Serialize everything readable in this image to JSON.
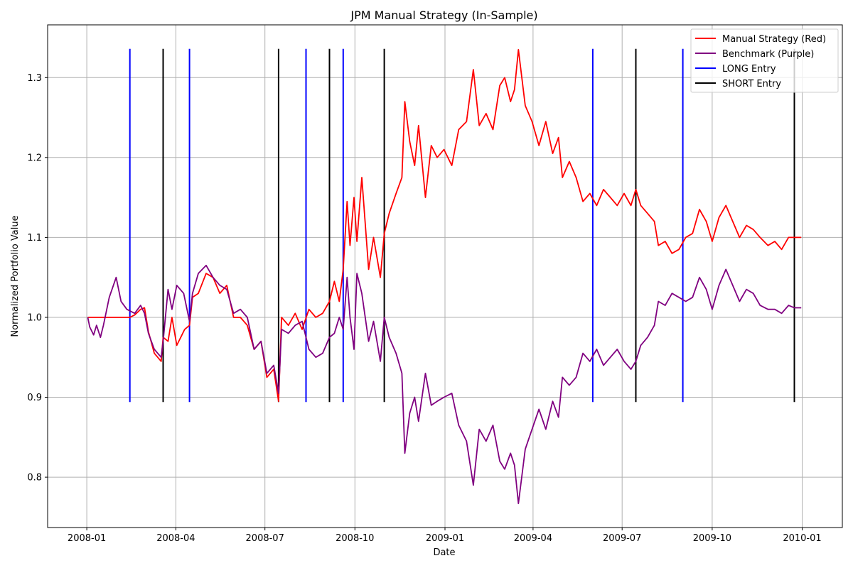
{
  "chart_data": {
    "type": "line",
    "title": "JPM Manual Strategy (In-Sample)",
    "xlabel": "Date",
    "ylabel": "Normalized Portfolio Value",
    "xlim": [
      "2007-11-22",
      "2010-02-11"
    ],
    "ylim": [
      0.737,
      1.366
    ],
    "grid": true,
    "legend_position": "top-right",
    "x_ticks": [
      "2008-01",
      "2008-04",
      "2008-07",
      "2008-10",
      "2009-01",
      "2009-04",
      "2009-07",
      "2009-10",
      "2010-01"
    ],
    "y_ticks": [
      0.8,
      0.9,
      1.0,
      1.1,
      1.2,
      1.3
    ],
    "y_tick_labels": [
      "0.8",
      "0.9",
      "1.0",
      "1.1",
      "1.2",
      "1.3"
    ],
    "series": [
      {
        "name": "Manual Strategy (Red)",
        "color": "#ff0000",
        "points": [
          [
            "2008-01-02",
            1.0
          ],
          [
            "2008-02-14",
            1.0
          ],
          [
            "2008-02-19",
            1.003
          ],
          [
            "2008-02-25",
            1.01
          ],
          [
            "2008-02-29",
            1.012
          ],
          [
            "2008-03-04",
            0.982
          ],
          [
            "2008-03-10",
            0.955
          ],
          [
            "2008-03-17",
            0.945
          ],
          [
            "2008-03-19",
            0.975
          ],
          [
            "2008-03-24",
            0.97
          ],
          [
            "2008-03-28",
            1.0
          ],
          [
            "2008-04-02",
            0.965
          ],
          [
            "2008-04-10",
            0.985
          ],
          [
            "2008-04-15",
            0.99
          ],
          [
            "2008-04-18",
            1.025
          ],
          [
            "2008-04-24",
            1.03
          ],
          [
            "2008-05-02",
            1.055
          ],
          [
            "2008-05-09",
            1.05
          ],
          [
            "2008-05-16",
            1.03
          ],
          [
            "2008-05-23",
            1.04
          ],
          [
            "2008-05-30",
            1.0
          ],
          [
            "2008-06-06",
            1.0
          ],
          [
            "2008-06-13",
            0.99
          ],
          [
            "2008-06-20",
            0.96
          ],
          [
            "2008-06-27",
            0.97
          ],
          [
            "2008-07-03",
            0.925
          ],
          [
            "2008-07-10",
            0.935
          ],
          [
            "2008-07-15",
            0.895
          ],
          [
            "2008-07-18",
            1.0
          ],
          [
            "2008-07-25",
            0.99
          ],
          [
            "2008-08-01",
            1.005
          ],
          [
            "2008-08-08",
            0.985
          ],
          [
            "2008-08-15",
            1.01
          ],
          [
            "2008-08-22",
            1.0
          ],
          [
            "2008-08-29",
            1.005
          ],
          [
            "2008-09-05",
            1.02
          ],
          [
            "2008-09-10",
            1.045
          ],
          [
            "2008-09-15",
            1.02
          ],
          [
            "2008-09-19",
            1.06
          ],
          [
            "2008-09-23",
            1.145
          ],
          [
            "2008-09-26",
            1.09
          ],
          [
            "2008-09-30",
            1.15
          ],
          [
            "2008-10-03",
            1.095
          ],
          [
            "2008-10-08",
            1.175
          ],
          [
            "2008-10-15",
            1.06
          ],
          [
            "2008-10-20",
            1.1
          ],
          [
            "2008-10-27",
            1.05
          ],
          [
            "2008-10-31",
            1.105
          ],
          [
            "2008-11-05",
            1.13
          ],
          [
            "2008-11-12",
            1.155
          ],
          [
            "2008-11-18",
            1.175
          ],
          [
            "2008-11-21",
            1.27
          ],
          [
            "2008-11-26",
            1.22
          ],
          [
            "2008-12-01",
            1.19
          ],
          [
            "2008-12-05",
            1.24
          ],
          [
            "2008-12-12",
            1.15
          ],
          [
            "2008-12-18",
            1.215
          ],
          [
            "2008-12-24",
            1.2
          ],
          [
            "2008-12-31",
            1.21
          ],
          [
            "2009-01-08",
            1.19
          ],
          [
            "2009-01-15",
            1.235
          ],
          [
            "2009-01-23",
            1.245
          ],
          [
            "2009-01-30",
            1.31
          ],
          [
            "2009-02-05",
            1.24
          ],
          [
            "2009-02-12",
            1.255
          ],
          [
            "2009-02-19",
            1.235
          ],
          [
            "2009-02-26",
            1.29
          ],
          [
            "2009-03-03",
            1.3
          ],
          [
            "2009-03-09",
            1.27
          ],
          [
            "2009-03-13",
            1.285
          ],
          [
            "2009-03-17",
            1.335
          ],
          [
            "2009-03-24",
            1.265
          ],
          [
            "2009-03-31",
            1.245
          ],
          [
            "2009-04-07",
            1.215
          ],
          [
            "2009-04-14",
            1.245
          ],
          [
            "2009-04-21",
            1.205
          ],
          [
            "2009-04-27",
            1.225
          ],
          [
            "2009-05-01",
            1.175
          ],
          [
            "2009-05-08",
            1.195
          ],
          [
            "2009-05-15",
            1.175
          ],
          [
            "2009-05-22",
            1.145
          ],
          [
            "2009-05-29",
            1.155
          ],
          [
            "2009-06-05",
            1.14
          ],
          [
            "2009-06-12",
            1.16
          ],
          [
            "2009-06-19",
            1.15
          ],
          [
            "2009-06-26",
            1.14
          ],
          [
            "2009-07-03",
            1.155
          ],
          [
            "2009-07-10",
            1.14
          ],
          [
            "2009-07-15",
            1.16
          ],
          [
            "2009-07-20",
            1.14
          ],
          [
            "2009-07-27",
            1.13
          ],
          [
            "2009-08-03",
            1.12
          ],
          [
            "2009-08-07",
            1.09
          ],
          [
            "2009-08-14",
            1.095
          ],
          [
            "2009-08-21",
            1.08
          ],
          [
            "2009-08-28",
            1.085
          ],
          [
            "2009-09-04",
            1.1
          ],
          [
            "2009-09-11",
            1.105
          ],
          [
            "2009-09-18",
            1.135
          ],
          [
            "2009-09-25",
            1.12
          ],
          [
            "2009-10-01",
            1.095
          ],
          [
            "2009-10-08",
            1.125
          ],
          [
            "2009-10-15",
            1.14
          ],
          [
            "2009-10-22",
            1.12
          ],
          [
            "2009-10-29",
            1.1
          ],
          [
            "2009-11-05",
            1.115
          ],
          [
            "2009-11-12",
            1.11
          ],
          [
            "2009-11-19",
            1.1
          ],
          [
            "2009-11-27",
            1.09
          ],
          [
            "2009-12-04",
            1.095
          ],
          [
            "2009-12-11",
            1.085
          ],
          [
            "2009-12-18",
            1.1
          ],
          [
            "2009-12-24",
            1.1
          ],
          [
            "2009-12-31",
            1.1
          ]
        ]
      },
      {
        "name": "Benchmark (Purple)",
        "color": "#800080",
        "points": [
          [
            "2008-01-02",
            1.0
          ],
          [
            "2008-01-04",
            0.988
          ],
          [
            "2008-01-08",
            0.978
          ],
          [
            "2008-01-11",
            0.99
          ],
          [
            "2008-01-15",
            0.975
          ],
          [
            "2008-01-18",
            0.99
          ],
          [
            "2008-01-24",
            1.025
          ],
          [
            "2008-01-31",
            1.05
          ],
          [
            "2008-02-05",
            1.02
          ],
          [
            "2008-02-11",
            1.01
          ],
          [
            "2008-02-19",
            1.005
          ],
          [
            "2008-02-25",
            1.015
          ],
          [
            "2008-02-29",
            1.005
          ],
          [
            "2008-03-04",
            0.98
          ],
          [
            "2008-03-10",
            0.96
          ],
          [
            "2008-03-17",
            0.95
          ],
          [
            "2008-03-19",
            0.97
          ],
          [
            "2008-03-24",
            1.035
          ],
          [
            "2008-03-28",
            1.01
          ],
          [
            "2008-04-02",
            1.04
          ],
          [
            "2008-04-09",
            1.03
          ],
          [
            "2008-04-15",
            0.995
          ],
          [
            "2008-04-18",
            1.03
          ],
          [
            "2008-04-24",
            1.055
          ],
          [
            "2008-05-02",
            1.065
          ],
          [
            "2008-05-09",
            1.05
          ],
          [
            "2008-05-16",
            1.04
          ],
          [
            "2008-05-23",
            1.035
          ],
          [
            "2008-05-30",
            1.005
          ],
          [
            "2008-06-06",
            1.01
          ],
          [
            "2008-06-13",
            1.0
          ],
          [
            "2008-06-20",
            0.96
          ],
          [
            "2008-06-27",
            0.97
          ],
          [
            "2008-07-03",
            0.93
          ],
          [
            "2008-07-10",
            0.94
          ],
          [
            "2008-07-15",
            0.905
          ],
          [
            "2008-07-18",
            0.985
          ],
          [
            "2008-07-25",
            0.98
          ],
          [
            "2008-08-01",
            0.99
          ],
          [
            "2008-08-08",
            0.995
          ],
          [
            "2008-08-15",
            0.96
          ],
          [
            "2008-08-22",
            0.95
          ],
          [
            "2008-08-29",
            0.955
          ],
          [
            "2008-09-05",
            0.975
          ],
          [
            "2008-09-10",
            0.98
          ],
          [
            "2008-09-15",
            1.0
          ],
          [
            "2008-09-19",
            0.985
          ],
          [
            "2008-09-23",
            1.05
          ],
          [
            "2008-09-26",
            1.0
          ],
          [
            "2008-09-30",
            0.96
          ],
          [
            "2008-10-03",
            1.055
          ],
          [
            "2008-10-08",
            1.03
          ],
          [
            "2008-10-15",
            0.97
          ],
          [
            "2008-10-20",
            0.995
          ],
          [
            "2008-10-27",
            0.945
          ],
          [
            "2008-10-31",
            1.0
          ],
          [
            "2008-11-05",
            0.975
          ],
          [
            "2008-11-12",
            0.955
          ],
          [
            "2008-11-18",
            0.93
          ],
          [
            "2008-11-21",
            0.83
          ],
          [
            "2008-11-26",
            0.88
          ],
          [
            "2008-12-01",
            0.9
          ],
          [
            "2008-12-05",
            0.87
          ],
          [
            "2008-12-12",
            0.93
          ],
          [
            "2008-12-18",
            0.89
          ],
          [
            "2008-12-24",
            0.895
          ],
          [
            "2008-12-31",
            0.9
          ],
          [
            "2009-01-08",
            0.905
          ],
          [
            "2009-01-15",
            0.865
          ],
          [
            "2009-01-23",
            0.845
          ],
          [
            "2009-01-30",
            0.79
          ],
          [
            "2009-02-05",
            0.86
          ],
          [
            "2009-02-12",
            0.845
          ],
          [
            "2009-02-19",
            0.865
          ],
          [
            "2009-02-26",
            0.82
          ],
          [
            "2009-03-03",
            0.81
          ],
          [
            "2009-03-09",
            0.83
          ],
          [
            "2009-03-13",
            0.815
          ],
          [
            "2009-03-17",
            0.767
          ],
          [
            "2009-03-24",
            0.835
          ],
          [
            "2009-03-31",
            0.86
          ],
          [
            "2009-04-07",
            0.885
          ],
          [
            "2009-04-14",
            0.86
          ],
          [
            "2009-04-21",
            0.895
          ],
          [
            "2009-04-27",
            0.875
          ],
          [
            "2009-05-01",
            0.925
          ],
          [
            "2009-05-08",
            0.915
          ],
          [
            "2009-05-15",
            0.925
          ],
          [
            "2009-05-22",
            0.955
          ],
          [
            "2009-05-29",
            0.945
          ],
          [
            "2009-06-05",
            0.96
          ],
          [
            "2009-06-12",
            0.94
          ],
          [
            "2009-06-19",
            0.95
          ],
          [
            "2009-06-26",
            0.96
          ],
          [
            "2009-07-03",
            0.945
          ],
          [
            "2009-07-10",
            0.935
          ],
          [
            "2009-07-15",
            0.945
          ],
          [
            "2009-07-20",
            0.965
          ],
          [
            "2009-07-27",
            0.975
          ],
          [
            "2009-08-03",
            0.99
          ],
          [
            "2009-08-07",
            1.02
          ],
          [
            "2009-08-14",
            1.015
          ],
          [
            "2009-08-21",
            1.03
          ],
          [
            "2009-08-28",
            1.025
          ],
          [
            "2009-09-04",
            1.02
          ],
          [
            "2009-09-11",
            1.025
          ],
          [
            "2009-09-18",
            1.05
          ],
          [
            "2009-09-25",
            1.035
          ],
          [
            "2009-10-01",
            1.01
          ],
          [
            "2009-10-08",
            1.04
          ],
          [
            "2009-10-15",
            1.06
          ],
          [
            "2009-10-22",
            1.04
          ],
          [
            "2009-10-29",
            1.02
          ],
          [
            "2009-11-05",
            1.035
          ],
          [
            "2009-11-12",
            1.03
          ],
          [
            "2009-11-19",
            1.015
          ],
          [
            "2009-11-27",
            1.01
          ],
          [
            "2009-12-04",
            1.01
          ],
          [
            "2009-12-11",
            1.005
          ],
          [
            "2009-12-18",
            1.015
          ],
          [
            "2009-12-24",
            1.012
          ],
          [
            "2009-12-31",
            1.012
          ]
        ]
      }
    ],
    "vlines": {
      "y_range": [
        0.894,
        1.336
      ],
      "long": {
        "name": "LONG Entry",
        "color": "#0000ff",
        "dates": [
          "2008-02-14",
          "2008-04-15",
          "2008-08-12",
          "2008-09-19",
          "2009-06-01",
          "2009-09-01"
        ]
      },
      "short": {
        "name": "SHORT Entry",
        "color": "#000000",
        "dates": [
          "2008-03-19",
          "2008-07-15",
          "2008-09-05",
          "2008-10-31",
          "2009-07-15",
          "2009-12-24"
        ]
      }
    }
  }
}
